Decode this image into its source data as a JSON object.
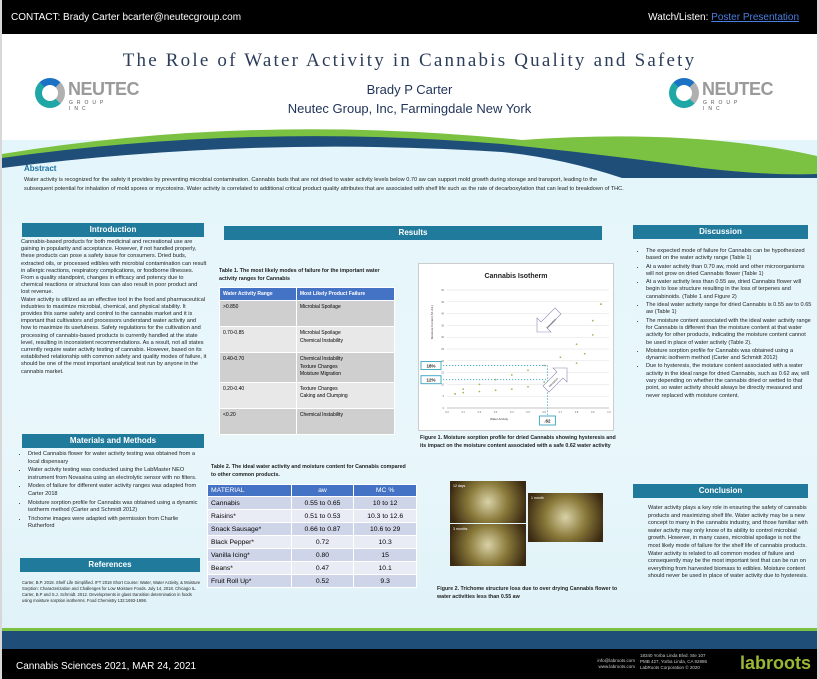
{
  "topbar": {
    "contact": "CONTACT: Brady Carter bcarter@neutecgroup.com",
    "watch_label": "Watch/Listen:",
    "watch_link": "Poster Presentation"
  },
  "header": {
    "title": "The Role of Water Activity in Cannabis Quality and Safety",
    "author": "Brady P Carter",
    "affiliation": "Neutec Group, Inc, Farmingdale New York",
    "logo_name": "NEUTEC",
    "logo_sub": "GROUP INC"
  },
  "abstract": {
    "heading": "Abstract",
    "text": "Water activity is recognized for the safety it provides by preventing microbial contamination. Cannabis buds that are not dried to water activity levels below 0.70 aw can support mold growth during storage and transport, leading to the subsequent potential for inhalation of mold spores or mycotoxins. Water activity is correlated to additional critical product quality attributes that are associated with shelf life such as the rate of decarboxylation that can lead to breakdown of THC."
  },
  "introduction": {
    "heading": "Introduction",
    "p1": "Cannabis-based products for both medicinal and recreational use are gaining in popularity and acceptance. However, if not handled properly, these products can pose a safety issue for consumers. Dried buds, extracted oils, or processed edibles with microbial contamination can result in allergic reactions, respiratory complications, or foodborne illnesses. From a quality standpoint, changes in efficacy and potency due to chemical reactions or structural loss can also result in poor product and lost revenue.",
    "p2": "Water activity is utilized as an effective tool in the food and pharmaceutical industries to maximize microbial, chemical, and physical stability. It provides this same safety and control to the cannabis market and it is important that cultivators and processors understand water activity and how to maximize its usefulness. Safety regulations for the cultivation and processing of cannabis-based products is currently handled at the state level, resulting in inconsistent recommendations. As a result, not all states currently require water activity testing of cannabis. However, based on its established relationship with common safety and quality modes of failure, it should be one of the most important analytical test run by anyone in the cannabis market."
  },
  "methods": {
    "heading": "Materials and Methods",
    "items": [
      "Dried Cannabis flower for water activity testing was obtained from a local dispensary",
      "Water activity testing was conducted using the LabMaster NEO instrument from Novasina using an electrolytic sensor with no filters.",
      "Modes of failure for different water activity ranges was adapted from Carter 2018",
      "Moisture sorption profile for Cannabis was obtained using a dynamic isotherm method (Carter and Schmidt 2012)",
      "Trichome images were adapted with permission from Charlie Rutherford"
    ]
  },
  "references": {
    "heading": "References",
    "items": [
      "Carter, B.P. 2018. Shelf Life Simplified. IFT 2018 Short Course: Water, Water Activity, & Moisture Sorption: Characterization and Challenges for Low Moisture Foods. July 14, 2018. Chicago IL.",
      "Carter, B.P and S.J. Schmidt. 2012. Developments in glass transition determination in foods using moisture sorption isotherms. Food Chemistry 132:1693-1698."
    ]
  },
  "results": {
    "heading": "Results",
    "table1": {
      "caption": "Table 1. The most likely modes of failure for the important water activity ranges for Cannabis",
      "headers": [
        "Water Activity Range",
        "Most Likely Product Failure"
      ],
      "rows": [
        [
          ">0.850",
          "Microbial Spoilage"
        ],
        [
          "0.70-0.85",
          "Microbial Spoilage\nChemical Instability"
        ],
        [
          "0.40-0.70",
          "Chemical Instability\nTexture Changes\nMoisture Migration"
        ],
        [
          "0.20-0.40",
          "Texture Changes\nCaking and Clumping"
        ],
        [
          "<0.20",
          "Chemical Instability"
        ]
      ]
    },
    "table2": {
      "caption": "Table 2. The ideal water activity and moisture content for Cannabis compared to other common products.",
      "headers": [
        "MATERIAL",
        "aw",
        "MC %"
      ],
      "rows": [
        [
          "Cannabis",
          "0.55 to 0.65",
          "10 to 12"
        ],
        [
          "Raisins*",
          "0.51 to 0.53",
          "10.3 to 12.6"
        ],
        [
          "Snack Sausage*",
          "0.66 to 0.87",
          "10.6 to 29"
        ],
        [
          "Black Pepper*",
          "0.72",
          "10.3"
        ],
        [
          "Vanilla Icing*",
          "0.80",
          "15"
        ],
        [
          "Beans*",
          "0.47",
          "10.1"
        ],
        [
          "Fruit Roll Up*",
          "0.52",
          "9.3"
        ]
      ]
    },
    "figure1_caption": "Figure 1. Moisture sorption profile for dried Cannabis showing hysteresis and its impact on the moisture content associated with a safe 0.62 water activity",
    "figure2_caption": "Figure 2. Trichome structure loss due to over drying Cannabis flower to water activities less than 0.55 aw",
    "photos": [
      "12 days",
      "1 month",
      "3 months"
    ]
  },
  "chart_data": {
    "type": "scatter",
    "title": "Cannabis Isotherm",
    "xlabel": "Water Activity",
    "ylabel": "Moisture Content (% d.b.)",
    "xlim": [
      0,
      1
    ],
    "ylim": [
      0,
      50
    ],
    "series": [
      {
        "name": "Desorption",
        "x": [
          0.05,
          0.1,
          0.2,
          0.3,
          0.4,
          0.5,
          0.6,
          0.7,
          0.8,
          0.9,
          0.95
        ],
        "y": [
          6,
          8,
          10,
          12,
          14,
          16,
          18,
          21.5,
          27,
          37,
          44
        ]
      },
      {
        "name": "Adsorption",
        "x": [
          0.05,
          0.1,
          0.2,
          0.3,
          0.4,
          0.5,
          0.6,
          0.7,
          0.8,
          0.85,
          0.9,
          0.95
        ],
        "y": [
          6,
          6.5,
          7,
          7.5,
          8,
          9,
          11,
          14,
          19,
          23,
          31,
          44
        ]
      }
    ],
    "annotations": {
      "desorption_label": "Desorption",
      "adsorption_label": "Adsorption",
      "mc_high": "18%",
      "mc_low": "12%",
      "aw_mark": ".62"
    },
    "aw_mark_value": 0.62,
    "mc_high_value": 18,
    "mc_low_value": 12,
    "colors": {
      "series": "#9bbb59",
      "guide": "#4bacc6"
    }
  },
  "discussion": {
    "heading": "Discussion",
    "items": [
      "The expected mode of failure for Cannabis can be hypothesized based on the water activity range (Table 1)",
      "At a water activity  than 0.70 aw, mold and other microorganisms will not grow on dried Cannabis flower (Table 1)",
      "At a water activity less than 0.55 aw, dried Cannabis flower will begin to lose structure resulting in the loss of terpenes and cannabinoids. (Table 1 and Figure 2)",
      "The ideal water activity range for dried Cannabis is 0.55 aw to 0.65 aw (Table 1)",
      "The moisture content associated with the ideal water activity range for Cannabis is different than the moisture content at that water activity for other products, indicating the moisture content cannot be used in place of water activity (Table 2).",
      "Moisture sorption profile for Cannabis was obtained using a dynamic isotherm method (Carter and Schmidt 2012)",
      "Due to hysteresis, the moisture content associated with a water activity in the ideal range for dried Cannabis, such as 0.62 aw, will vary depending on whether the cannabis dried or wetted to that point, so water activity should always be directly measured and never replaced with moisture content."
    ]
  },
  "conclusion": {
    "heading": "Conclusion",
    "text": "Water activity plays a key role in ensuring the safety of cannabis products and maximizing shelf life. Water activity may be a new concept to many in the cannabis industry, and those familiar with water activity may only know of its ability to control microbial growth. However, in many cases, microbial spoilage is not the most likely mode of failure for the shelf life of cannabis products. Water activity is related to all common modes of failure and consequently may be the most important test that can be run on everything from harvested biomass to edibles. Moisture content should never be used in place of water activity due to hysteresis."
  },
  "footer": {
    "conference": "Cannabis Sciences 2021, MAR 24, 2021",
    "email": "info@labroots.com",
    "web": "www.labroots.com",
    "addr1": "18340 Yorba Linda Blvd. Ste 107",
    "addr2": "PMB 427, Yorba Linda, CA 92886",
    "copyright": "LabRoots Corporation © 2020",
    "brand": "labroots"
  }
}
